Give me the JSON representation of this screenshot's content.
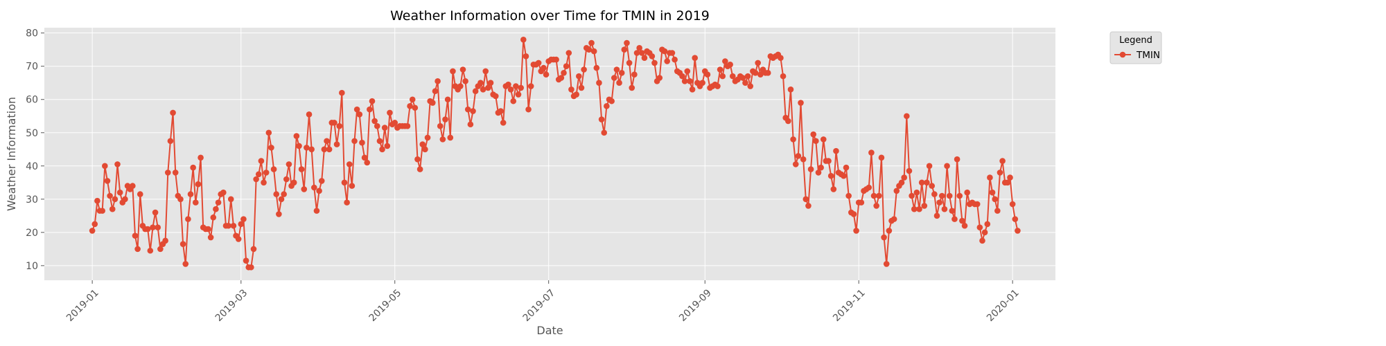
{
  "chart_data": {
    "type": "line",
    "title": "Weather Information over Time for TMIN in 2019",
    "xlabel": "Date",
    "ylabel": "Weather Information",
    "x_start": "2019-01-01",
    "x_end": "2019-12-31",
    "xlim": [
      "2018-12-13",
      "2020-01-18"
    ],
    "ylim": [
      5.6,
      81.6
    ],
    "yticks": [
      10,
      20,
      30,
      40,
      50,
      60,
      70,
      80
    ],
    "xticks": [
      "2019-01-01",
      "2019-03-01",
      "2019-05-01",
      "2019-07-01",
      "2019-09-01",
      "2019-11-01",
      "2020-01-01"
    ],
    "xtick_labels": [
      "2019-01",
      "2019-03",
      "2019-05",
      "2019-07",
      "2019-09",
      "2019-11",
      "2020-01"
    ],
    "grid": true,
    "legend": {
      "title": "Legend",
      "placement": "outside-top-right"
    },
    "series": [
      {
        "name": "TMIN",
        "color": "#E24A33",
        "values": [
          20.5,
          22.5,
          29.5,
          26.5,
          26.5,
          40,
          35.5,
          31,
          27,
          30,
          40.5,
          32,
          29,
          30,
          34,
          33,
          34,
          19,
          15,
          31.5,
          22,
          21,
          21,
          14.5,
          21.5,
          26,
          21.5,
          15,
          16.5,
          17.5,
          38,
          47.5,
          56,
          38,
          31,
          30,
          16.5,
          10.5,
          24,
          31.5,
          39.5,
          29,
          34.5,
          42.5,
          21.5,
          21,
          21,
          18.5,
          24.5,
          27,
          29,
          31.5,
          32,
          22,
          22,
          30,
          22,
          19,
          18,
          22.5,
          24,
          11.5,
          9.5,
          9.5,
          15,
          36,
          37.5,
          41.5,
          35,
          38,
          50,
          45.5,
          39,
          31.5,
          25.5,
          30,
          31.5,
          36,
          40.5,
          34,
          35,
          49,
          46,
          39,
          33,
          45.5,
          55.5,
          45,
          33.5,
          26.5,
          32.5,
          35.5,
          45,
          47.5,
          45,
          53,
          53,
          46.5,
          52,
          62,
          35,
          29,
          40.5,
          34,
          47.5,
          57,
          55.5,
          47,
          42.5,
          41,
          57,
          59.5,
          53.5,
          52,
          47.5,
          45,
          51.5,
          46,
          56,
          52.5,
          53,
          51.5,
          52,
          52,
          52,
          52,
          58,
          60,
          57.5,
          42,
          39,
          46.5,
          45,
          48.5,
          59.5,
          59,
          62.5,
          65.5,
          52,
          48,
          54,
          60,
          48.5,
          68.5,
          64,
          63,
          64,
          69,
          65.5,
          57,
          52.5,
          56.5,
          62.5,
          64,
          65,
          63,
          68.5,
          63.5,
          65,
          61.5,
          61,
          56,
          56.5,
          53,
          64,
          64.5,
          63,
          59.5,
          64,
          61.5,
          63.5,
          78,
          73,
          57,
          64,
          70.5,
          70.5,
          71,
          68.5,
          69.5,
          67.5,
          71.5,
          72,
          72,
          72,
          66,
          66.5,
          68,
          70,
          74,
          63,
          61,
          61.5,
          67,
          63.5,
          69,
          75.5,
          75,
          77,
          74.5,
          69.5,
          65,
          54,
          50,
          58,
          60,
          59.5,
          66.5,
          69,
          65,
          68,
          75,
          77,
          71,
          63.5,
          67.5,
          74,
          75.5,
          74,
          72.5,
          74.5,
          74,
          73,
          71,
          65.5,
          66.5,
          75,
          74.5,
          71.5,
          74,
          74,
          72,
          68.5,
          68,
          67,
          65.5,
          68.5,
          65.5,
          63,
          72.5,
          65,
          64,
          65,
          68.5,
          67.5,
          63.5,
          64,
          64.5,
          64,
          69,
          67,
          71.5,
          70,
          70.5,
          67,
          65.5,
          66,
          67,
          66.5,
          65,
          67,
          64,
          68.5,
          68,
          71,
          67.5,
          69,
          68,
          68,
          73,
          72.5,
          73,
          73.5,
          72.5,
          67,
          54.5,
          53.5,
          63,
          48,
          40.5,
          43,
          59,
          42,
          30,
          28,
          39,
          49.5,
          47.5,
          38,
          39.5,
          48,
          41.5,
          41.5,
          37,
          33,
          44.5,
          38,
          37.5,
          37,
          39.5,
          31,
          26,
          25.5,
          20.5,
          29,
          29,
          32.5,
          33,
          33.5,
          44,
          31,
          28,
          31,
          42.5,
          18.5,
          10.5,
          20.5,
          23.5,
          24,
          32.5,
          34,
          35,
          36.5,
          55,
          38.5,
          31,
          27,
          32,
          27,
          35,
          28,
          35,
          40,
          34,
          31.5,
          25,
          29,
          31,
          27,
          40,
          31,
          26.5,
          24,
          42,
          31,
          23.5,
          22,
          32,
          28.5,
          29,
          28.5,
          28.5,
          21.5,
          17.5,
          20,
          22.5,
          36.5,
          32,
          30,
          26.5,
          38,
          41.5,
          35,
          35,
          36.5,
          28.5,
          24,
          20.5
        ]
      }
    ]
  }
}
